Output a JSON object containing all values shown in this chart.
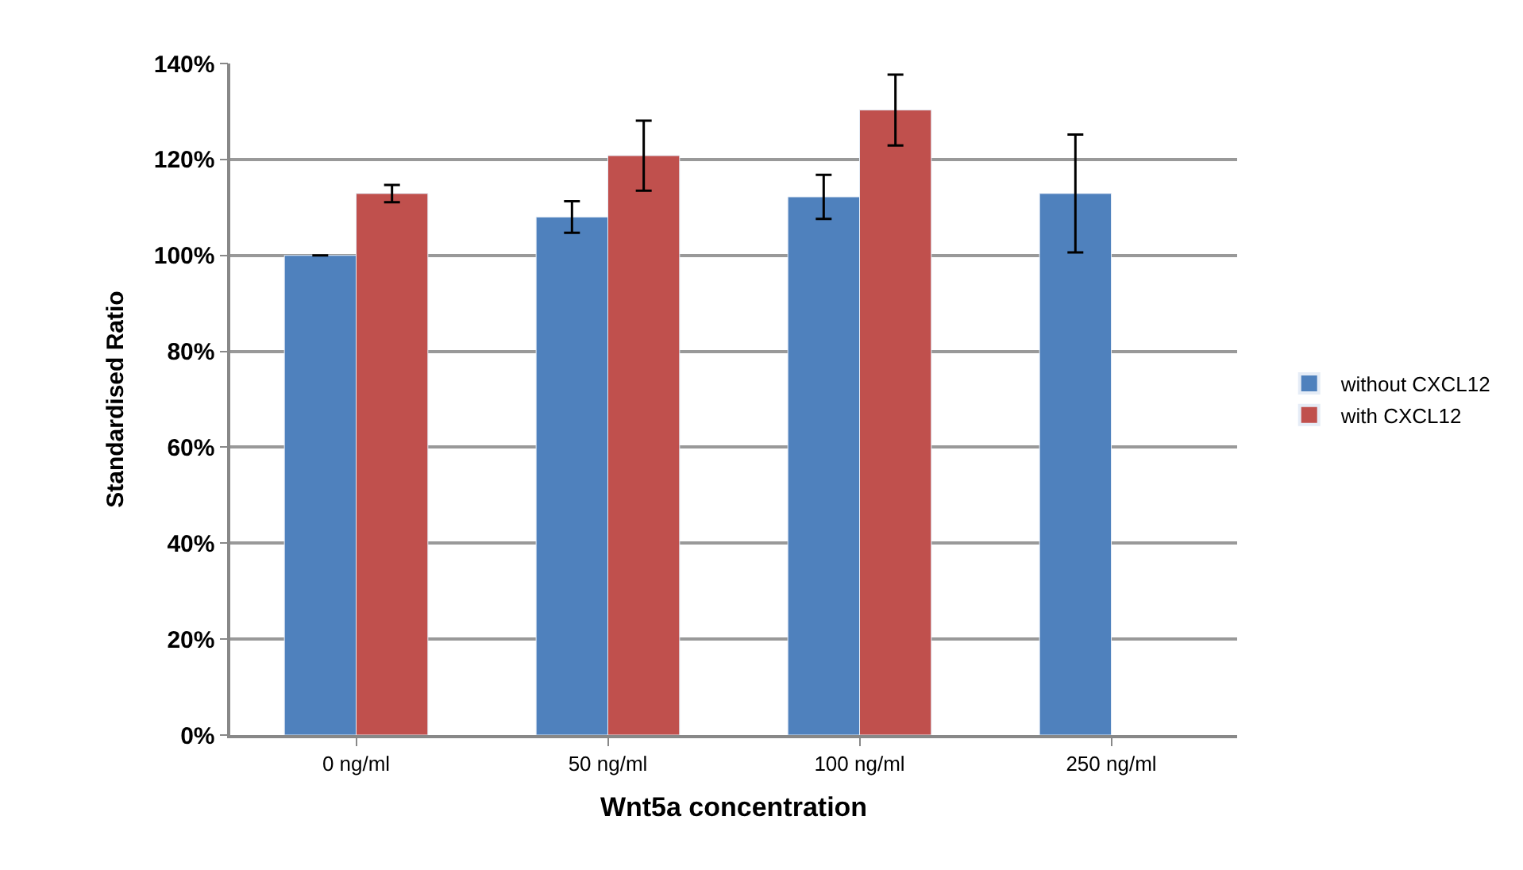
{
  "chart_data": {
    "type": "bar",
    "xlabel": "Wnt5a concentration",
    "ylabel": "Standardised Ratio",
    "categories": [
      "0 ng/ml",
      "50 ng/ml",
      "100 ng/ml",
      "250 ng/ml"
    ],
    "series": [
      {
        "name": "without CXCL12",
        "color": "#4f81bd",
        "values": [
          100,
          108,
          112.2,
          112.9
        ],
        "errors": [
          0,
          3.3,
          4.6,
          12.3
        ]
      },
      {
        "name": "with CXCL12",
        "color": "#c0504d",
        "values": [
          112.9,
          120.8,
          130.3,
          null
        ],
        "errors": [
          1.8,
          7.3,
          7.4,
          null
        ]
      }
    ],
    "ylim": [
      0,
      140
    ],
    "yticks": [
      {
        "value": 0,
        "label": "0%"
      },
      {
        "value": 20,
        "label": "20%"
      },
      {
        "value": 40,
        "label": "40%"
      },
      {
        "value": 60,
        "label": "60%"
      },
      {
        "value": 80,
        "label": "80%"
      },
      {
        "value": 100,
        "label": "100%"
      },
      {
        "value": 120,
        "label": "120%"
      },
      {
        "value": 140,
        "label": "140%"
      }
    ],
    "grid": "y",
    "legend": "right"
  }
}
